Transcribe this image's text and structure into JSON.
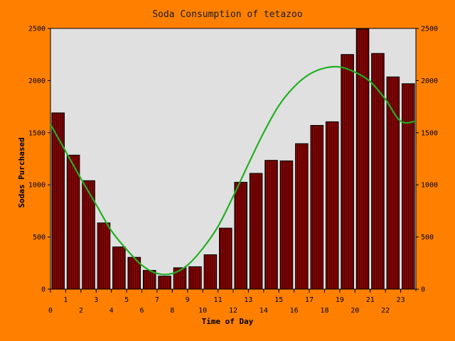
{
  "chart_data": {
    "type": "bar",
    "title": "Soda Consumption of tetazoo",
    "xlabel": "Time of Day",
    "ylabel": "Sodas Purchased",
    "categories": [
      0,
      1,
      2,
      3,
      4,
      5,
      6,
      7,
      8,
      9,
      10,
      11,
      12,
      13,
      14,
      15,
      16,
      17,
      18,
      19,
      20,
      21,
      22,
      23
    ],
    "values": [
      1690,
      1285,
      1040,
      635,
      405,
      305,
      180,
      125,
      205,
      215,
      330,
      585,
      1025,
      1110,
      1235,
      1230,
      1395,
      1570,
      1605,
      2250,
      2495,
      2260,
      2035,
      1970
    ],
    "trend": {
      "type": "line",
      "x": [
        0,
        1,
        2,
        3,
        4,
        5,
        6,
        7,
        8,
        9,
        10,
        11,
        12,
        13,
        14,
        15,
        16,
        17,
        18,
        19,
        20,
        21,
        22,
        23,
        24
      ],
      "y": [
        1580,
        1320,
        1060,
        810,
        560,
        380,
        230,
        150,
        150,
        230,
        390,
        600,
        890,
        1200,
        1500,
        1760,
        1940,
        2060,
        2120,
        2130,
        2080,
        1990,
        1820,
        1610,
        1610
      ]
    },
    "ylim": [
      0,
      2500
    ],
    "xlim": [
      0,
      24
    ],
    "yticks": [
      0,
      500,
      1000,
      1500,
      2000,
      2500
    ],
    "xticks_bottom": [
      0,
      2,
      4,
      6,
      8,
      10,
      12,
      14,
      16,
      18,
      20,
      22
    ],
    "xticks_top": [
      1,
      3,
      5,
      7,
      9,
      11,
      13,
      15,
      17,
      19,
      21,
      23
    ],
    "secondary_y_axis": true,
    "grid": false,
    "colors": {
      "background": "#ff8000",
      "plot_area": "#e0e0e0",
      "bar_fill": "#8b0000",
      "bar_stripe": "#3a0000",
      "trend_line": "#22b022"
    }
  }
}
